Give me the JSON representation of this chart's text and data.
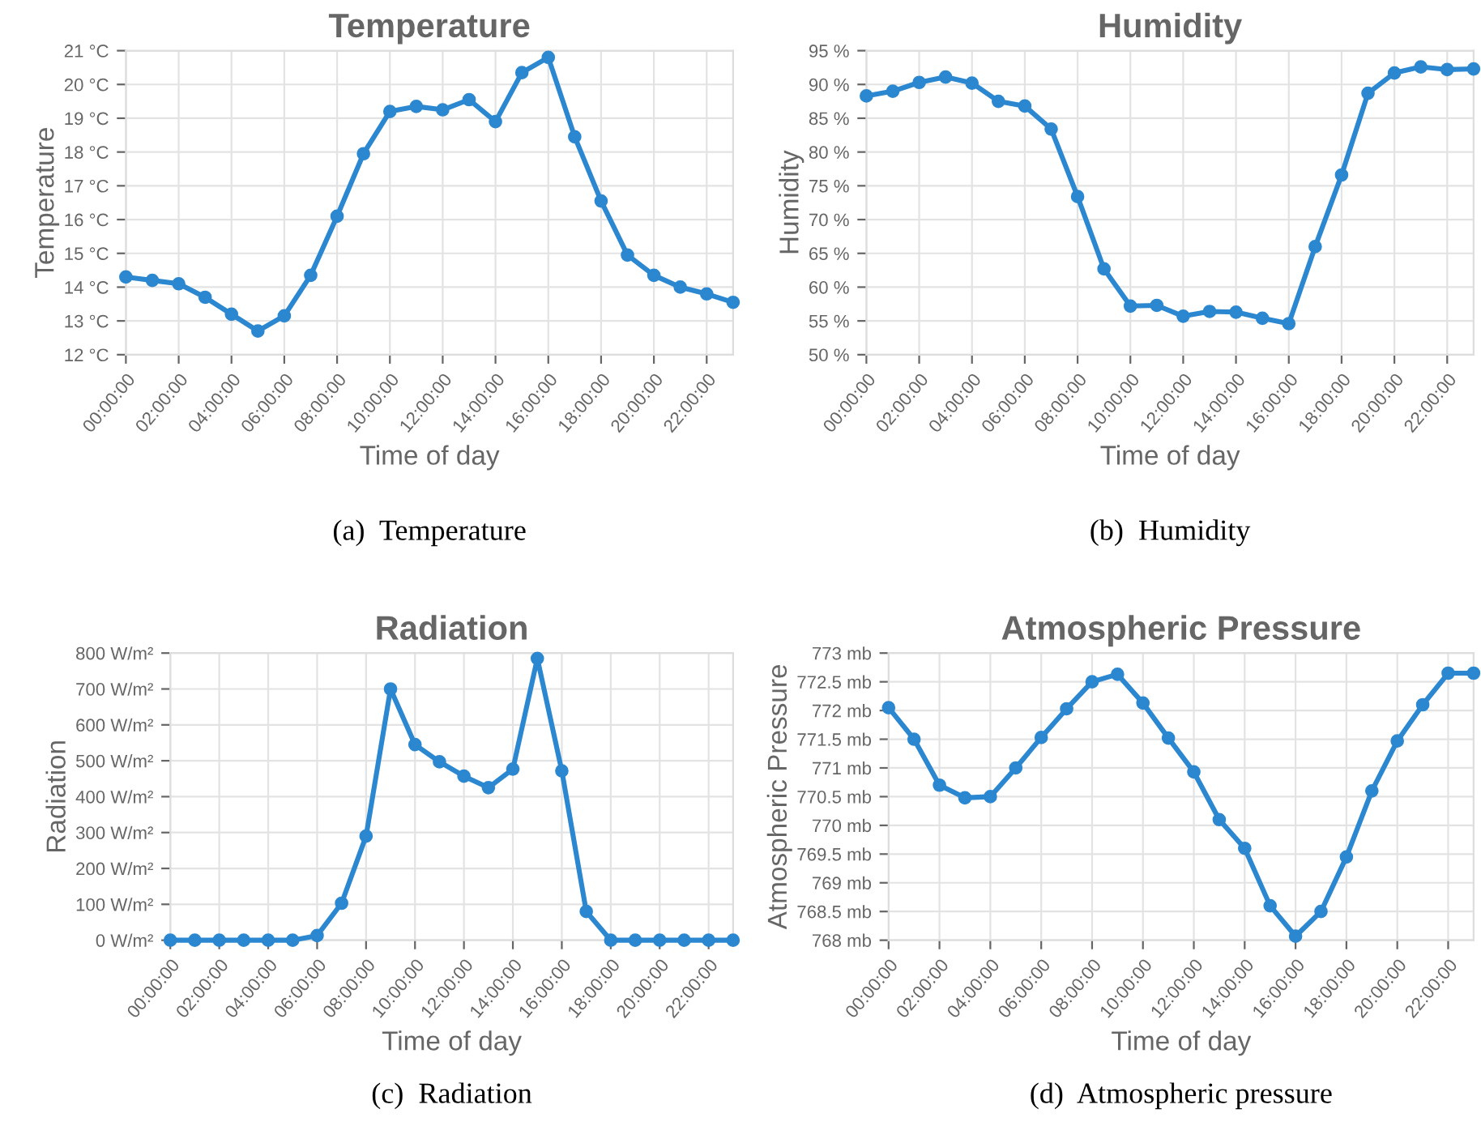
{
  "chart_data": [
    {
      "type": "line",
      "title": "Temperature",
      "xlabel": "Time of day",
      "ylabel": "Temperature",
      "annotations": [
        "(a)  Temperature"
      ],
      "grid": true,
      "marker": "circle",
      "line_style": "solid",
      "x": [
        0,
        1,
        2,
        3,
        4,
        5,
        6,
        7,
        8,
        9,
        10,
        11,
        12,
        13,
        14,
        15,
        16,
        17,
        18,
        19,
        20,
        21,
        22,
        23
      ],
      "series": [
        {
          "color": "#2b87cf",
          "values": [
            14.3,
            14.2,
            14.1,
            13.7,
            13.2,
            12.7,
            13.15,
            14.35,
            16.1,
            17.95,
            19.2,
            19.35,
            19.25,
            19.55,
            18.9,
            20.35,
            20.8,
            18.45,
            16.55,
            14.95,
            14.35,
            14.0,
            13.8,
            13.55
          ]
        }
      ],
      "xlim": [
        0,
        23
      ],
      "xticks": [
        {
          "value": 0,
          "label": "00:00:00"
        },
        {
          "value": 2,
          "label": "02:00:00"
        },
        {
          "value": 4,
          "label": "04:00:00"
        },
        {
          "value": 6,
          "label": "06:00:00"
        },
        {
          "value": 8,
          "label": "08:00:00"
        },
        {
          "value": 10,
          "label": "10:00:00"
        },
        {
          "value": 12,
          "label": "12:00:00"
        },
        {
          "value": 14,
          "label": "14:00:00"
        },
        {
          "value": 16,
          "label": "16:00:00"
        },
        {
          "value": 18,
          "label": "18:00:00"
        },
        {
          "value": 20,
          "label": "20:00:00"
        },
        {
          "value": 22,
          "label": "22:00:00"
        }
      ],
      "ylim": [
        12,
        21
      ],
      "yticks": [
        {
          "value": 12,
          "label": "12 °C"
        },
        {
          "value": 13,
          "label": "13 °C"
        },
        {
          "value": 14,
          "label": "14 °C"
        },
        {
          "value": 15,
          "label": "15 °C"
        },
        {
          "value": 16,
          "label": "16 °C"
        },
        {
          "value": 17,
          "label": "17 °C"
        },
        {
          "value": 18,
          "label": "18 °C"
        },
        {
          "value": 19,
          "label": "19 °C"
        },
        {
          "value": 20,
          "label": "20 °C"
        },
        {
          "value": 21,
          "label": "21 °C"
        }
      ]
    },
    {
      "type": "line",
      "title": "Humidity",
      "xlabel": "Time of day",
      "ylabel": "Humidity",
      "annotations": [
        "(b)  Humidity"
      ],
      "grid": true,
      "marker": "circle",
      "line_style": "solid",
      "x": [
        0,
        1,
        2,
        3,
        4,
        5,
        6,
        7,
        8,
        9,
        10,
        11,
        12,
        13,
        14,
        15,
        16,
        17,
        18,
        19,
        20,
        21,
        22,
        23
      ],
      "series": [
        {
          "color": "#2b87cf",
          "values": [
            88.3,
            89,
            90.3,
            91.1,
            90.2,
            87.5,
            86.8,
            83.4,
            73.4,
            62.7,
            57.2,
            57.3,
            55.7,
            56.4,
            56.3,
            55.4,
            54.6,
            66,
            76.6,
            88.7,
            91.7,
            92.6,
            92.2,
            92.3
          ]
        }
      ],
      "xlim": [
        0,
        23
      ],
      "xticks": [
        {
          "value": 0,
          "label": "00:00:00"
        },
        {
          "value": 2,
          "label": "02:00:00"
        },
        {
          "value": 4,
          "label": "04:00:00"
        },
        {
          "value": 6,
          "label": "06:00:00"
        },
        {
          "value": 8,
          "label": "08:00:00"
        },
        {
          "value": 10,
          "label": "10:00:00"
        },
        {
          "value": 12,
          "label": "12:00:00"
        },
        {
          "value": 14,
          "label": "14:00:00"
        },
        {
          "value": 16,
          "label": "16:00:00"
        },
        {
          "value": 18,
          "label": "18:00:00"
        },
        {
          "value": 20,
          "label": "20:00:00"
        },
        {
          "value": 22,
          "label": "22:00:00"
        }
      ],
      "ylim": [
        50,
        95
      ],
      "yticks": [
        {
          "value": 50,
          "label": "50 %"
        },
        {
          "value": 55,
          "label": "55 %"
        },
        {
          "value": 60,
          "label": "60 %"
        },
        {
          "value": 65,
          "label": "65 %"
        },
        {
          "value": 70,
          "label": "70 %"
        },
        {
          "value": 75,
          "label": "75 %"
        },
        {
          "value": 80,
          "label": "80 %"
        },
        {
          "value": 85,
          "label": "85 %"
        },
        {
          "value": 90,
          "label": "90 %"
        },
        {
          "value": 95,
          "label": "95 %"
        }
      ]
    },
    {
      "type": "line",
      "title": "Radiation",
      "xlabel": "Time of day",
      "ylabel": "Radiation",
      "annotations": [
        "(c)  Radiation"
      ],
      "grid": true,
      "marker": "circle",
      "line_style": "solid",
      "x": [
        0,
        1,
        2,
        3,
        4,
        5,
        6,
        7,
        8,
        9,
        10,
        11,
        12,
        13,
        14,
        15,
        16,
        17,
        18,
        19,
        20,
        21,
        22,
        23
      ],
      "series": [
        {
          "color": "#2b87cf",
          "values": [
            0,
            0,
            0,
            0,
            0,
            0,
            13,
            103,
            290,
            700,
            545,
            497,
            457,
            425,
            477,
            785,
            472,
            80,
            0,
            0,
            0,
            0,
            0,
            0
          ]
        }
      ],
      "xlim": [
        0,
        23
      ],
      "xticks": [
        {
          "value": 0,
          "label": "00:00:00"
        },
        {
          "value": 2,
          "label": "02:00:00"
        },
        {
          "value": 4,
          "label": "04:00:00"
        },
        {
          "value": 6,
          "label": "06:00:00"
        },
        {
          "value": 8,
          "label": "08:00:00"
        },
        {
          "value": 10,
          "label": "10:00:00"
        },
        {
          "value": 12,
          "label": "12:00:00"
        },
        {
          "value": 14,
          "label": "14:00:00"
        },
        {
          "value": 16,
          "label": "16:00:00"
        },
        {
          "value": 18,
          "label": "18:00:00"
        },
        {
          "value": 20,
          "label": "20:00:00"
        },
        {
          "value": 22,
          "label": "22:00:00"
        }
      ],
      "ylim": [
        0,
        800
      ],
      "yticks": [
        {
          "value": 0,
          "label": "0 W/m²"
        },
        {
          "value": 100,
          "label": "100 W/m²"
        },
        {
          "value": 200,
          "label": "200 W/m²"
        },
        {
          "value": 300,
          "label": "300 W/m²"
        },
        {
          "value": 400,
          "label": "400 W/m²"
        },
        {
          "value": 500,
          "label": "500 W/m²"
        },
        {
          "value": 600,
          "label": "600 W/m²"
        },
        {
          "value": 700,
          "label": "700 W/m²"
        },
        {
          "value": 800,
          "label": "800 W/m²"
        }
      ]
    },
    {
      "type": "line",
      "title": "Atmospheric Pressure",
      "xlabel": "Time of day",
      "ylabel": "Atmospheric Pressure",
      "annotations": [
        "(d)  Atmospheric pressure"
      ],
      "grid": true,
      "marker": "circle",
      "line_style": "solid",
      "x": [
        0,
        1,
        2,
        3,
        4,
        5,
        6,
        7,
        8,
        9,
        10,
        11,
        12,
        13,
        14,
        15,
        16,
        17,
        18,
        19,
        20,
        21,
        22,
        23
      ],
      "series": [
        {
          "color": "#2b87cf",
          "values": [
            772.05,
            771.5,
            770.7,
            770.48,
            770.5,
            771,
            771.53,
            772.03,
            772.5,
            772.63,
            772.13,
            771.52,
            770.93,
            770.1,
            769.6,
            768.6,
            768.07,
            768.5,
            769.45,
            770.6,
            771.47,
            772.1,
            772.65,
            772.65
          ]
        }
      ],
      "xlim": [
        0,
        23
      ],
      "xticks": [
        {
          "value": 0,
          "label": "00:00:00"
        },
        {
          "value": 2,
          "label": "02:00:00"
        },
        {
          "value": 4,
          "label": "04:00:00"
        },
        {
          "value": 6,
          "label": "06:00:00"
        },
        {
          "value": 8,
          "label": "08:00:00"
        },
        {
          "value": 10,
          "label": "10:00:00"
        },
        {
          "value": 12,
          "label": "12:00:00"
        },
        {
          "value": 14,
          "label": "14:00:00"
        },
        {
          "value": 16,
          "label": "16:00:00"
        },
        {
          "value": 18,
          "label": "18:00:00"
        },
        {
          "value": 20,
          "label": "20:00:00"
        },
        {
          "value": 22,
          "label": "22:00:00"
        }
      ],
      "ylim": [
        768,
        773
      ],
      "yticks": [
        {
          "value": 768,
          "label": "768 mb"
        },
        {
          "value": 768.5,
          "label": "768.5 mb"
        },
        {
          "value": 769,
          "label": "769 mb"
        },
        {
          "value": 769.5,
          "label": "769.5 mb"
        },
        {
          "value": 770,
          "label": "770 mb"
        },
        {
          "value": 770.5,
          "label": "770.5 mb"
        },
        {
          "value": 771,
          "label": "771 mb"
        },
        {
          "value": 771.5,
          "label": "771.5 mb"
        },
        {
          "value": 772,
          "label": "772 mb"
        },
        {
          "value": 772.5,
          "label": "772.5 mb"
        },
        {
          "value": 773,
          "label": "773 mb"
        }
      ]
    }
  ]
}
